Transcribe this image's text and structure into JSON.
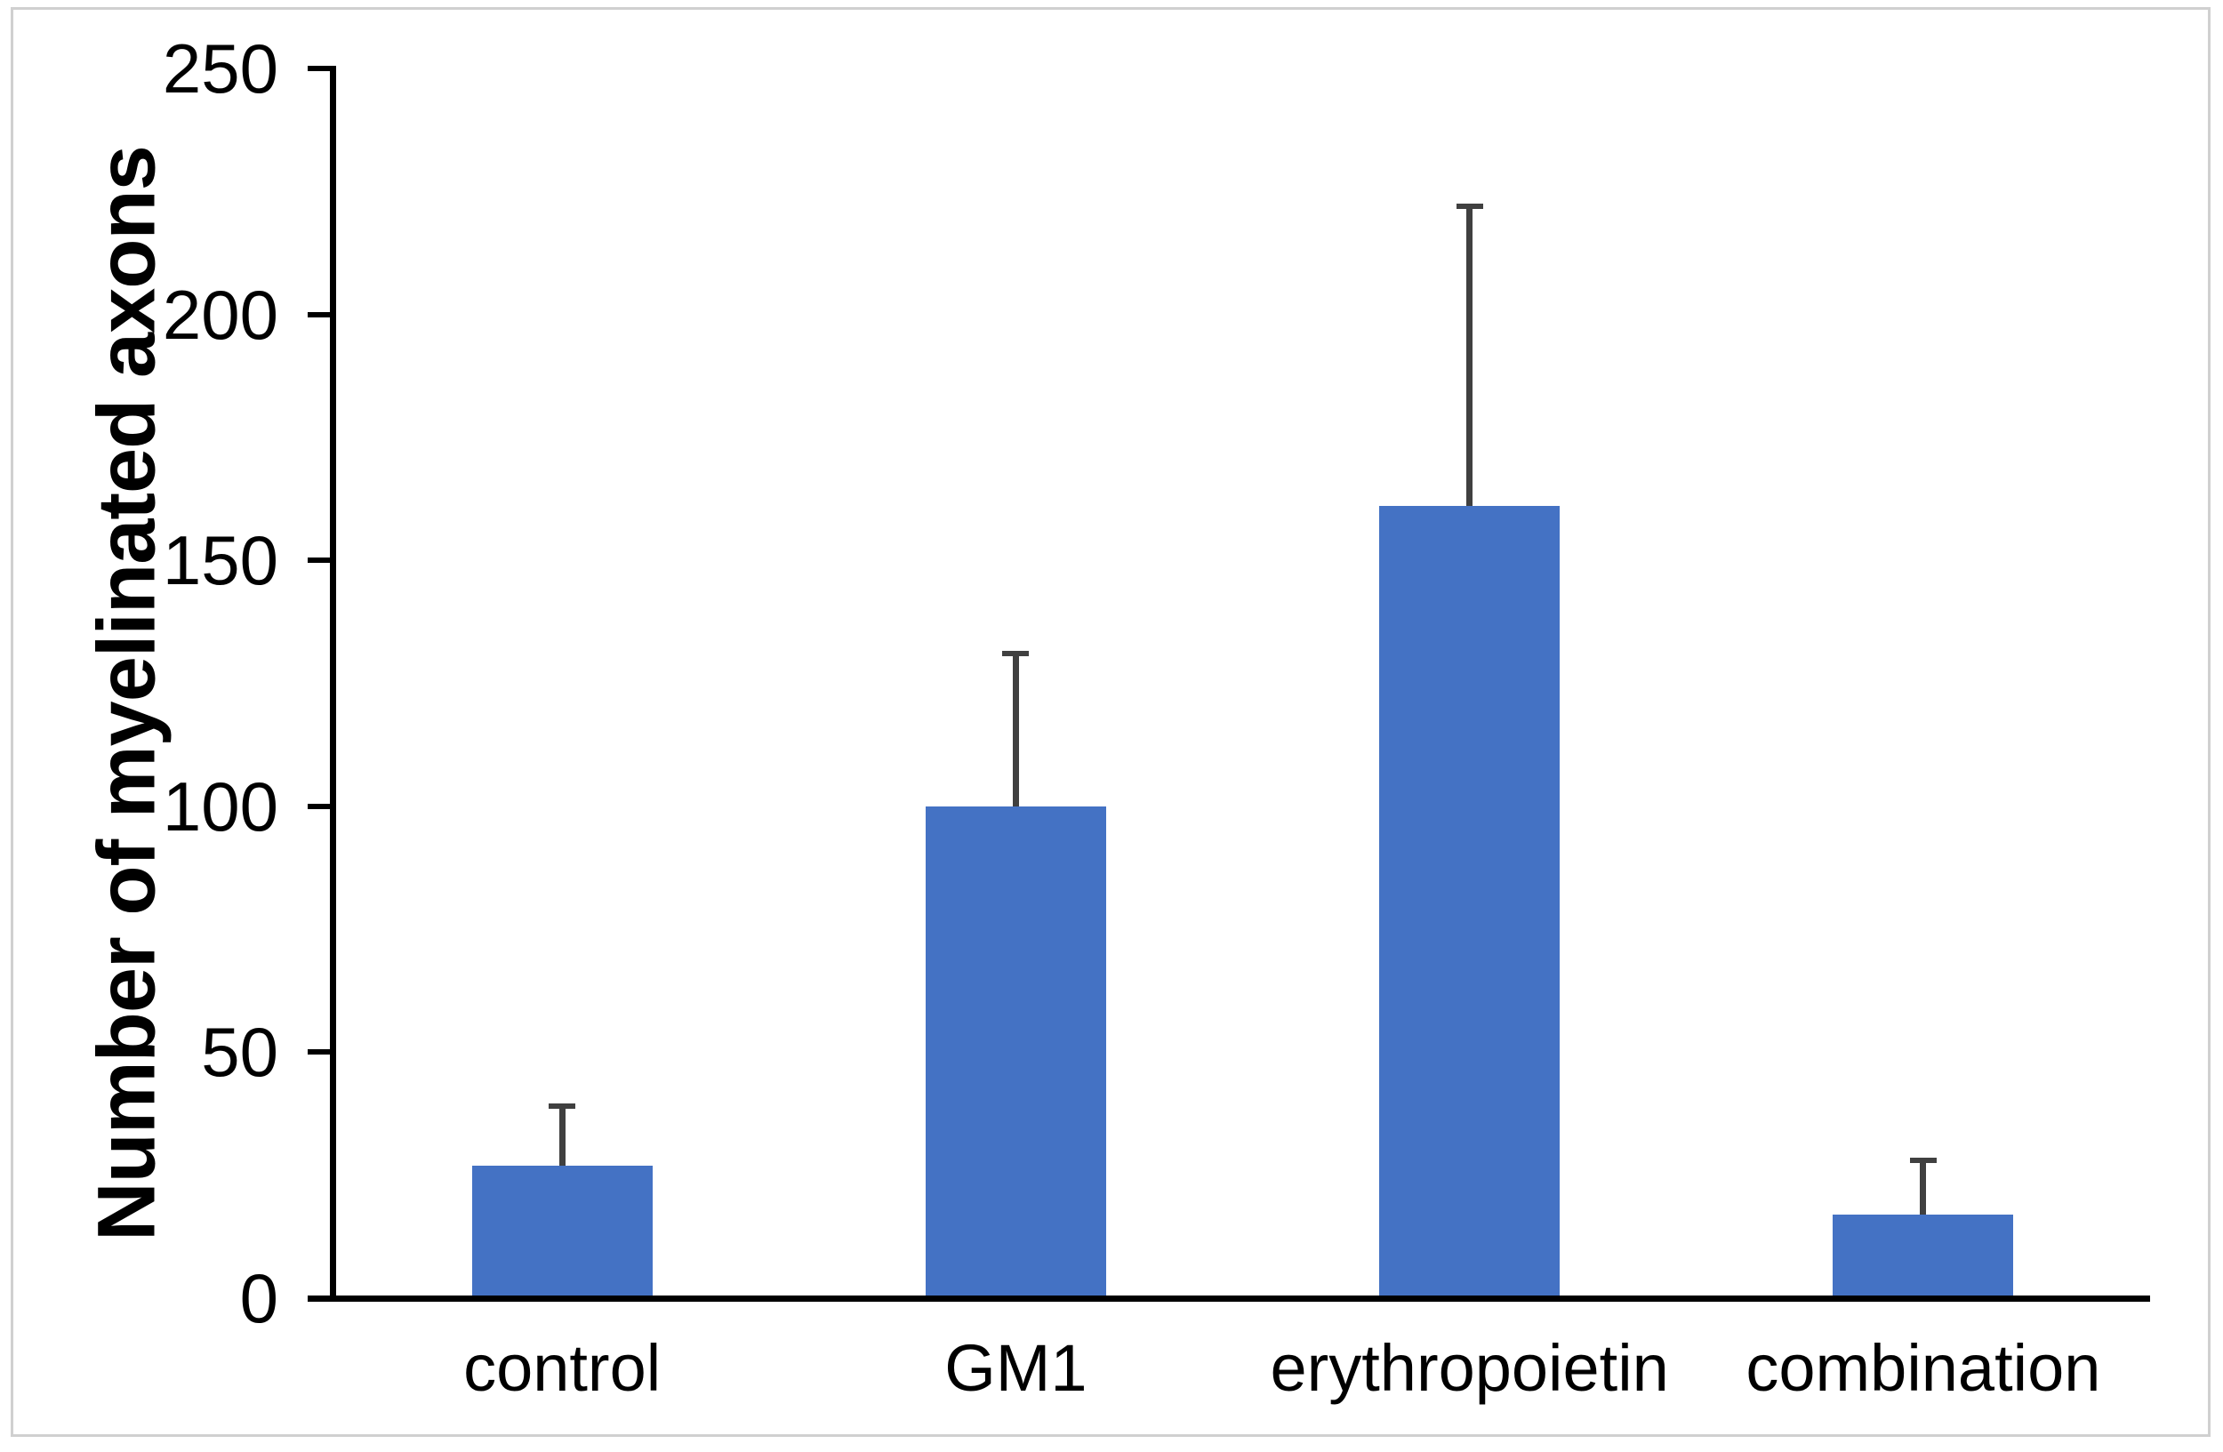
{
  "chart_data": {
    "type": "bar",
    "title": "",
    "ylabel": "Number of myelinated axons",
    "xlabel": "",
    "categories": [
      "control",
      "GM1",
      "erythropoietin",
      "combination"
    ],
    "values": [
      27,
      100,
      161,
      17
    ],
    "errors": [
      12,
      31,
      61,
      11
    ],
    "error_direction": "plus-only",
    "ylim": [
      0,
      250
    ],
    "yticks": [
      0,
      50,
      100,
      150,
      200,
      250
    ],
    "grid": false,
    "legend": "none",
    "bar_color": "#4472C4",
    "error_bar_color": "#404040",
    "axis_color": "#000000",
    "text_color": "#000000",
    "frame_border_color": "#D0D0D0",
    "background_color": "#FFFFFF"
  }
}
